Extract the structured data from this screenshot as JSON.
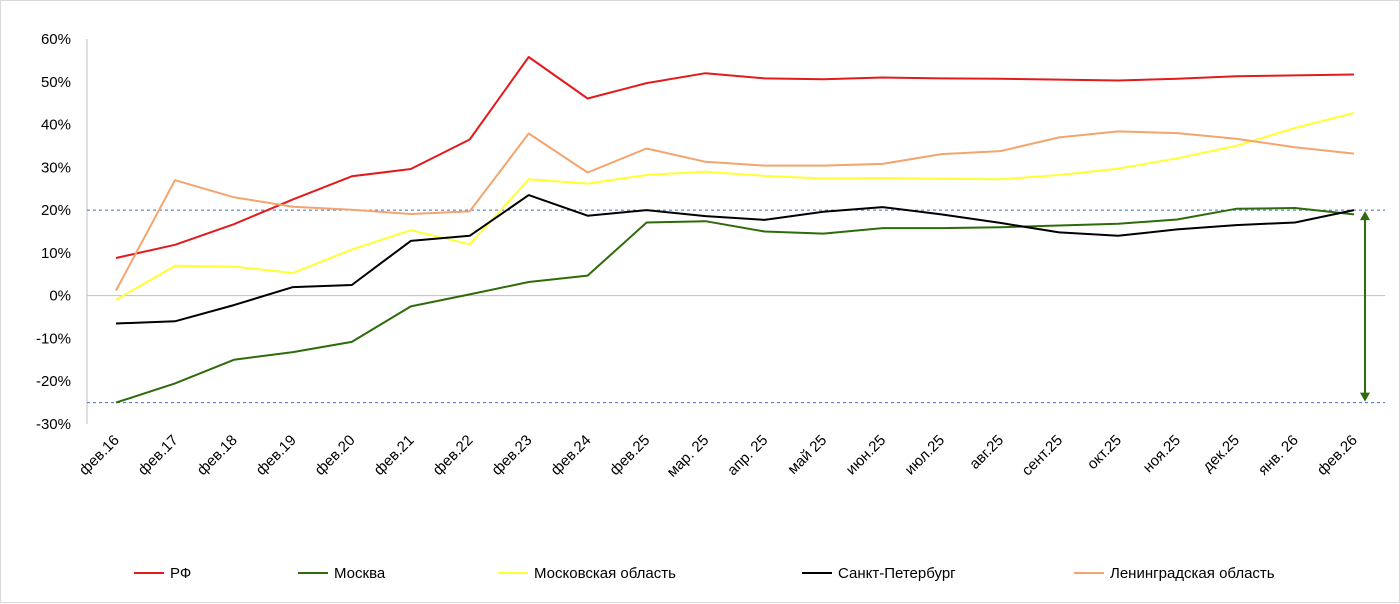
{
  "chart_data": {
    "type": "line",
    "categories": [
      "фев.16",
      "фев.17",
      "фев.18",
      "фев.19",
      "фев.20",
      "фев.21",
      "фев.22",
      "фев.23",
      "фев.24",
      "фев.25",
      "мар. 25",
      "апр. 25",
      "май 25",
      "июн.25",
      "июл.25",
      "авг.25",
      "сент.25",
      "окт.25",
      "ноя.25",
      "дек.25",
      "янв. 26",
      "фев.26"
    ],
    "ylim": [
      -0.3,
      0.6
    ],
    "yticks": [
      -0.3,
      -0.2,
      -0.1,
      0,
      0.1,
      0.2,
      0.3,
      0.4,
      0.5,
      0.6
    ],
    "ytick_labels": [
      "-30%",
      "-20%",
      "-10%",
      "0%",
      "10%",
      "20%",
      "30%",
      "40%",
      "50%",
      "60%"
    ],
    "grid": false,
    "legend_position": "bottom",
    "series": [
      {
        "name": "РФ",
        "color": "#e31a1c",
        "values": [
          0.088,
          0.119,
          0.167,
          0.225,
          0.279,
          0.296,
          0.365,
          0.558,
          0.461,
          0.497,
          0.52,
          0.508,
          0.506,
          0.51,
          0.508,
          0.507,
          0.505,
          0.503,
          0.507,
          0.513,
          0.515,
          0.517
        ]
      },
      {
        "name": "Москва",
        "color": "#2e6b0a",
        "values": [
          -0.25,
          -0.205,
          -0.15,
          -0.132,
          -0.108,
          -0.025,
          0.003,
          0.032,
          0.047,
          0.171,
          0.174,
          0.15,
          0.145,
          0.158,
          0.158,
          0.16,
          0.164,
          0.168,
          0.178,
          0.203,
          0.205,
          0.19
        ]
      },
      {
        "name": "Московская область",
        "color": "#ffff33",
        "values": [
          -0.01,
          0.07,
          0.068,
          0.053,
          0.108,
          0.153,
          0.12,
          0.272,
          0.262,
          0.282,
          0.29,
          0.28,
          0.274,
          0.275,
          0.273,
          0.272,
          0.282,
          0.297,
          0.321,
          0.35,
          0.392,
          0.427
        ]
      },
      {
        "name": "Санкт-Петербург",
        "color": "#000000",
        "values": [
          -0.065,
          -0.06,
          -0.022,
          0.02,
          0.025,
          0.128,
          0.14,
          0.235,
          0.187,
          0.2,
          0.186,
          0.177,
          0.196,
          0.207,
          0.19,
          0.17,
          0.148,
          0.14,
          0.155,
          0.165,
          0.171,
          0.2
        ]
      },
      {
        "name": "Ленинградская область",
        "color": "#f4a46e",
        "values": [
          0.012,
          0.27,
          0.23,
          0.208,
          0.201,
          0.191,
          0.197,
          0.379,
          0.288,
          0.344,
          0.313,
          0.304,
          0.304,
          0.308,
          0.331,
          0.338,
          0.37,
          0.384,
          0.38,
          0.367,
          0.347,
          0.332
        ]
      }
    ],
    "reference_lines": [
      0.2,
      -0.25
    ],
    "arrow_range": [
      0.2,
      -0.25
    ],
    "accent_colors": {
      "reference": "#4472c4",
      "arrow": "#2e6b0a",
      "axis": "#bfbfbf"
    }
  }
}
